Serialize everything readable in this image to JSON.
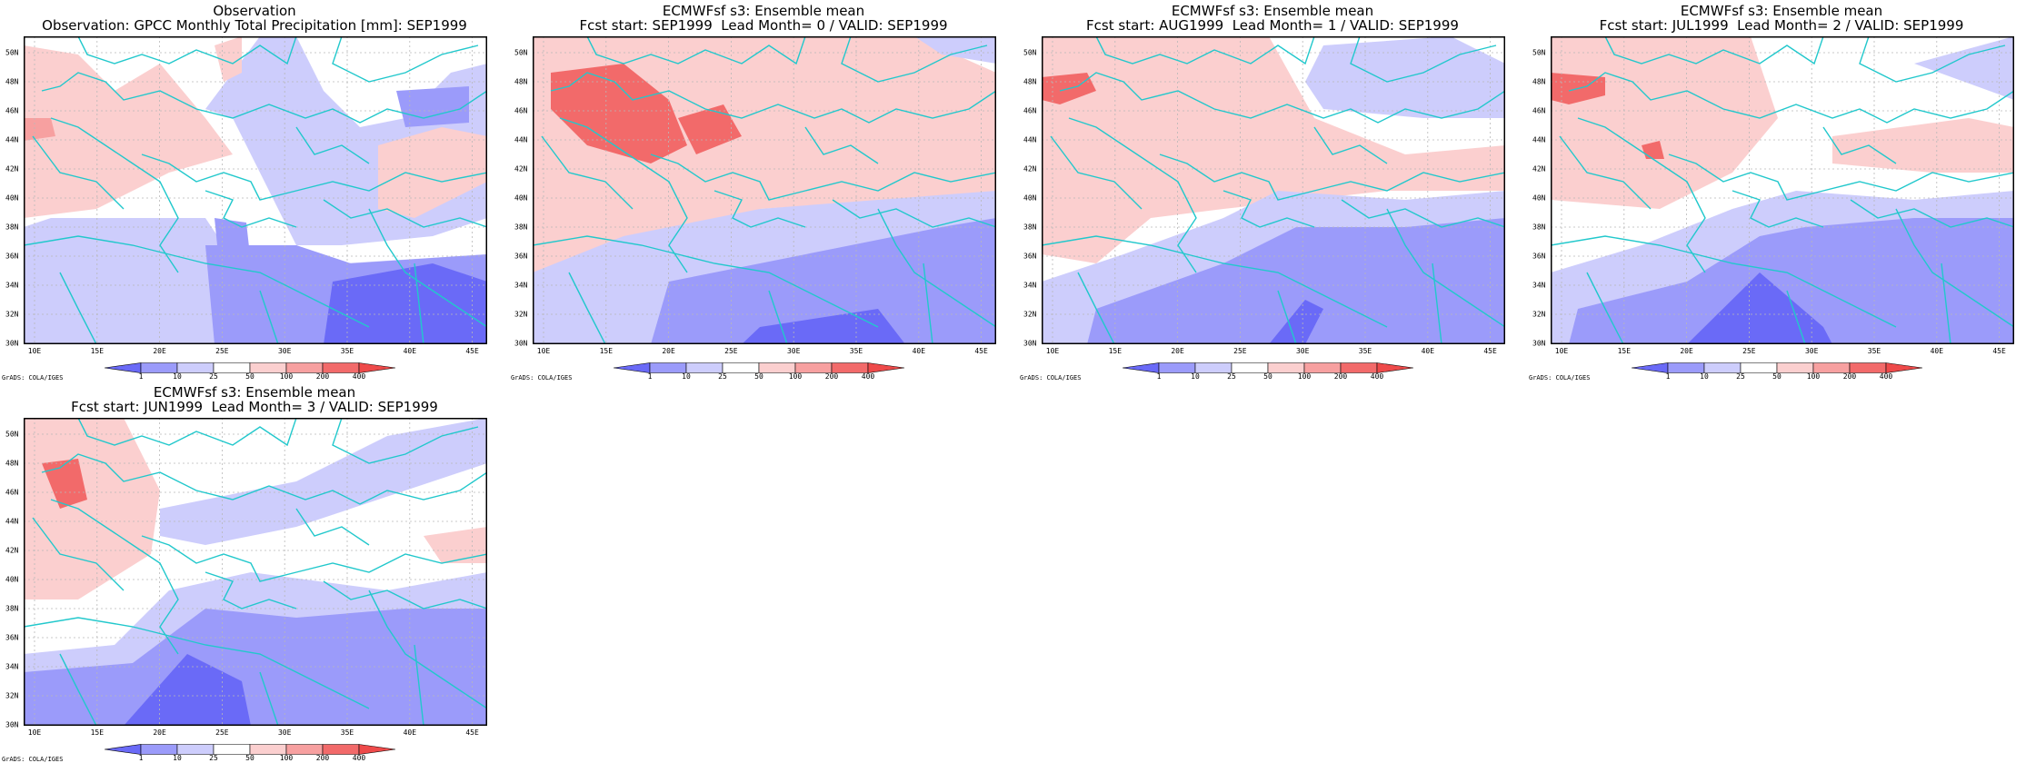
{
  "lat_labels": [
    "50N",
    "48N",
    "46N",
    "44N",
    "42N",
    "40N",
    "38N",
    "36N",
    "34N",
    "32N",
    "30N"
  ],
  "lon_labels": [
    "10E",
    "15E",
    "20E",
    "25E",
    "30E",
    "35E",
    "40E",
    "45E"
  ],
  "colorbar": {
    "levels": [
      "1",
      "10",
      "25",
      "50",
      "100",
      "200",
      "400"
    ],
    "colors": [
      "#6a6af7",
      "#9b9bfa",
      "#cdcdfc",
      "#ffffff",
      "#fbcfcf",
      "#f7a0a0",
      "#f26a6a",
      "#ee4a4a"
    ]
  },
  "credit": "GrADS: COLA/IGES",
  "coast_color": "#22c8cc",
  "panels": [
    {
      "line1": "Observation",
      "line2": "Observation: GPCC Monthly Total Precipitation [mm]: SEP1999"
    },
    {
      "line1": "ECMWFsf s3: Ensemble mean",
      "line2": "Fcst start: SEP1999  Lead Month= 0 / VALID: SEP1999"
    },
    {
      "line1": "ECMWFsf s3: Ensemble mean",
      "line2": "Fcst start: AUG1999  Lead Month= 1 / VALID: SEP1999"
    },
    {
      "line1": "ECMWFsf s3: Ensemble mean",
      "line2": "Fcst start: JUL1999  Lead Month= 2 / VALID: SEP1999"
    },
    {
      "line1": "ECMWFsf s3: Ensemble mean",
      "line2": "Fcst start: JUN1999  Lead Month= 3 / VALID: SEP1999"
    }
  ]
}
